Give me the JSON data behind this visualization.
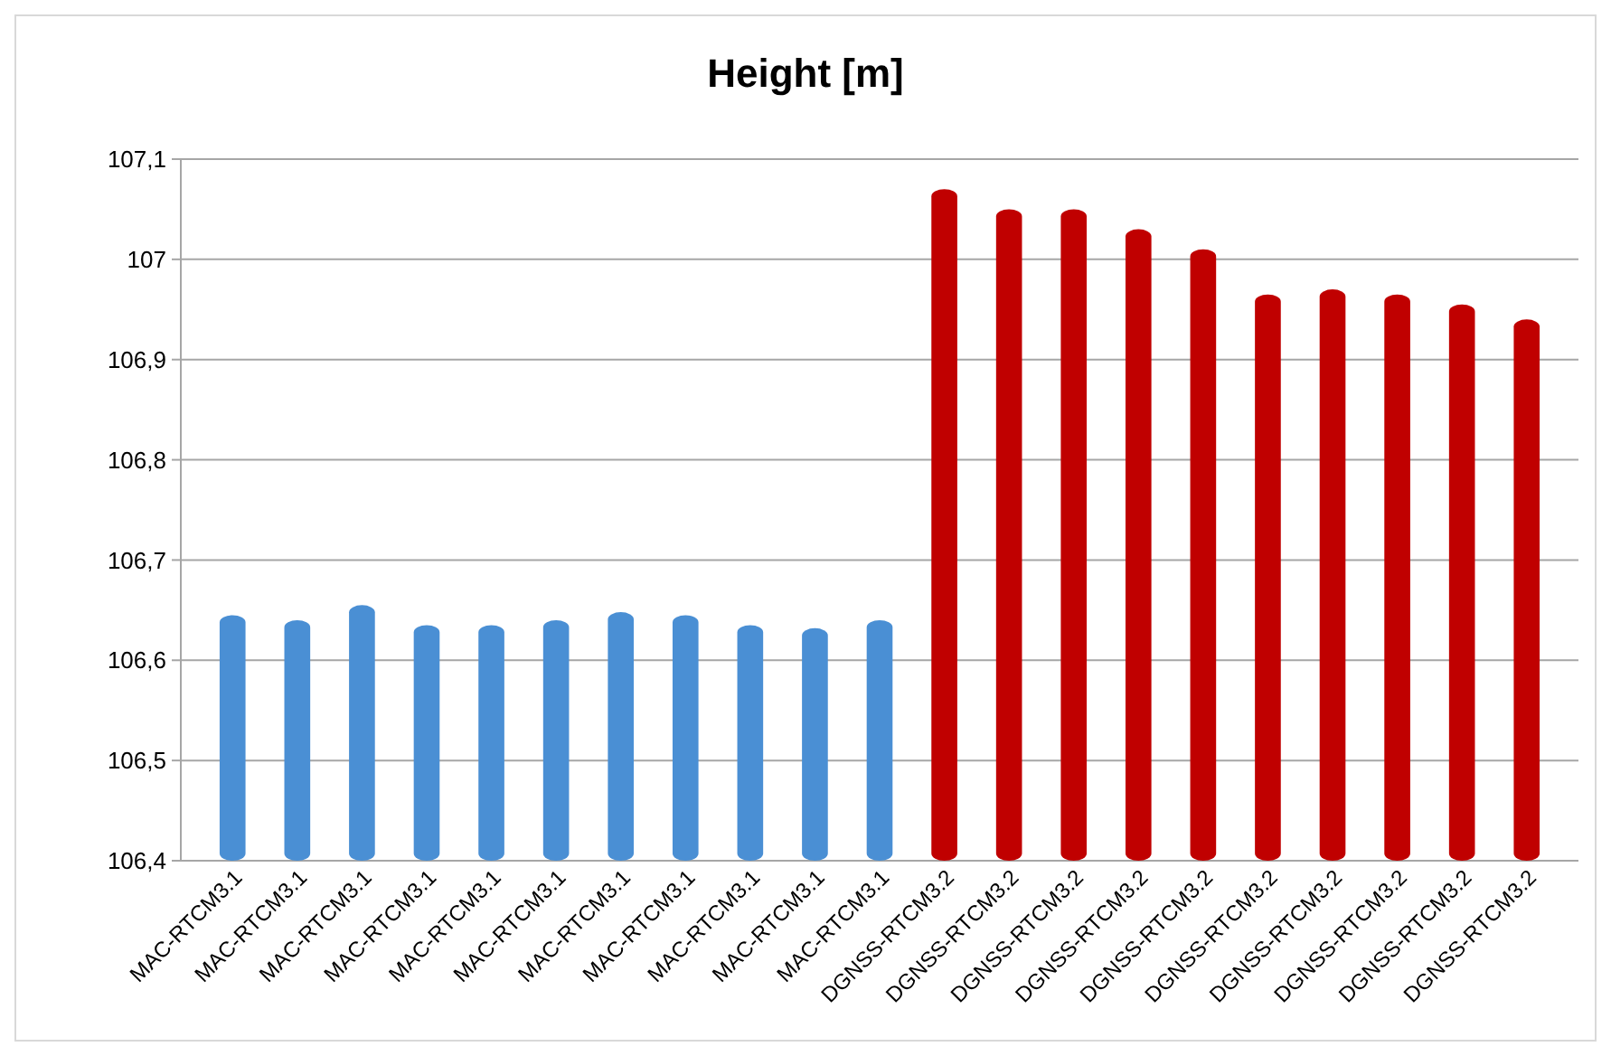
{
  "chart_data": {
    "type": "bar",
    "title": "Height [m]",
    "categories": [
      "MAC-RTCM3.1",
      "MAC-RTCM3.1",
      "MAC-RTCM3.1",
      "MAC-RTCM3.1",
      "MAC-RTCM3.1",
      "MAC-RTCM3.1",
      "MAC-RTCM3.1",
      "MAC-RTCM3.1",
      "MAC-RTCM3.1",
      "MAC-RTCM3.1",
      "MAC-RTCM3.1",
      "DGNSS-RTCM3.2",
      "DGNSS-RTCM3.2",
      "DGNSS-RTCM3.2",
      "DGNSS-RTCM3.2",
      "DGNSS-RTCM3.2",
      "DGNSS-RTCM3.2",
      "DGNSS-RTCM3.2",
      "DGNSS-RTCM3.2",
      "DGNSS-RTCM3.2",
      "DGNSS-RTCM3.2"
    ],
    "values": [
      106.645,
      106.64,
      106.655,
      106.635,
      106.635,
      106.64,
      106.648,
      106.645,
      106.635,
      106.632,
      106.64,
      107.07,
      107.05,
      107.05,
      107.03,
      107.01,
      106.965,
      106.97,
      106.965,
      106.955,
      106.94
    ],
    "colors": [
      "#4a8fd4",
      "#4a8fd4",
      "#4a8fd4",
      "#4a8fd4",
      "#4a8fd4",
      "#4a8fd4",
      "#4a8fd4",
      "#4a8fd4",
      "#4a8fd4",
      "#4a8fd4",
      "#4a8fd4",
      "#c00000",
      "#c00000",
      "#c00000",
      "#c00000",
      "#c00000",
      "#c00000",
      "#c00000",
      "#c00000",
      "#c00000",
      "#c00000"
    ],
    "ylim": [
      106.4,
      107.1
    ],
    "yticks": [
      {
        "value": 106.4,
        "label": "106,4"
      },
      {
        "value": 106.5,
        "label": "106,5"
      },
      {
        "value": 106.6,
        "label": "106,6"
      },
      {
        "value": 106.7,
        "label": "106,7"
      },
      {
        "value": 106.8,
        "label": "106,8"
      },
      {
        "value": 106.9,
        "label": "106,9"
      },
      107,
      {
        "value": 107.1,
        "label": "107,1"
      }
    ],
    "grid": "y"
  }
}
